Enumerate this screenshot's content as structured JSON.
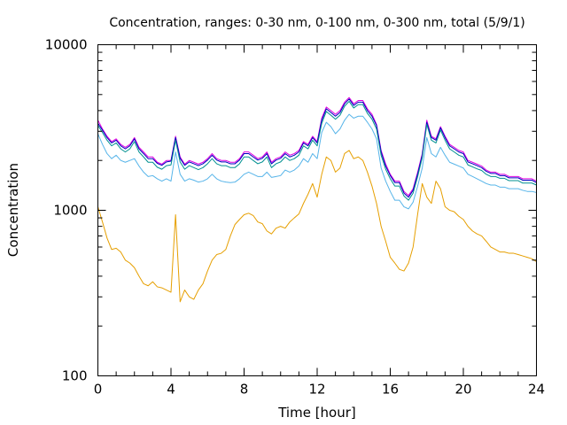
{
  "chart_data": {
    "type": "line",
    "title": "Concentration, ranges: 0-30 nm, 0-100 nm, 0-300 nm, total (5/9/1)",
    "xlabel": "Time [hour]",
    "ylabel": "Concentration",
    "xlim": [
      0,
      24
    ],
    "ylim": [
      100,
      10000
    ],
    "yscale": "log",
    "grid": false,
    "legend": "none",
    "x_ticks": [
      0,
      4,
      8,
      12,
      16,
      20,
      24
    ],
    "x_tick_labels": [
      "0",
      "4",
      "8",
      "12",
      "16",
      "20",
      "24"
    ],
    "x_minor_step": 1,
    "y_ticks": [
      100,
      1000,
      10000
    ],
    "y_tick_labels": [
      "100",
      "1000",
      "10000"
    ],
    "x": [
      0,
      0.25,
      0.5,
      0.75,
      1,
      1.25,
      1.5,
      1.75,
      2,
      2.25,
      2.5,
      2.75,
      3,
      3.25,
      3.5,
      3.75,
      4,
      4.25,
      4.5,
      4.75,
      5,
      5.25,
      5.5,
      5.75,
      6,
      6.25,
      6.5,
      6.75,
      7,
      7.25,
      7.5,
      7.75,
      8,
      8.25,
      8.5,
      8.75,
      9,
      9.25,
      9.5,
      9.75,
      10,
      10.25,
      10.5,
      10.75,
      11,
      11.25,
      11.5,
      11.75,
      12,
      12.25,
      12.5,
      12.75,
      13,
      13.25,
      13.5,
      13.75,
      14,
      14.25,
      14.5,
      14.75,
      15,
      15.25,
      15.5,
      15.75,
      16,
      16.25,
      16.5,
      16.75,
      17,
      17.25,
      17.5,
      17.75,
      18,
      18.25,
      18.5,
      18.75,
      19,
      19.25,
      19.5,
      19.75,
      20,
      20.25,
      20.5,
      20.75,
      21,
      21.25,
      21.5,
      21.75,
      22,
      22.25,
      22.5,
      22.75,
      23,
      23.25,
      23.5,
      23.75,
      24
    ],
    "series": [
      {
        "color": "#e000e0",
        "values": [
          3500,
          3100,
          2800,
          2600,
          2700,
          2500,
          2400,
          2500,
          2750,
          2400,
          2250,
          2100,
          2100,
          1950,
          1900,
          2000,
          2000,
          2800,
          2100,
          1900,
          2000,
          1950,
          1900,
          1950,
          2050,
          2200,
          2050,
          2000,
          2000,
          1950,
          1950,
          2050,
          2250,
          2250,
          2150,
          2050,
          2100,
          2250,
          1950,
          2050,
          2100,
          2250,
          2150,
          2200,
          2300,
          2600,
          2500,
          2800,
          2600,
          3600,
          4200,
          4000,
          3800,
          4000,
          4500,
          4800,
          4400,
          4600,
          4600,
          4100,
          3800,
          3300,
          2300,
          1900,
          1650,
          1500,
          1500,
          1300,
          1230,
          1350,
          1700,
          2200,
          3500,
          2800,
          2700,
          3200,
          2800,
          2500,
          2400,
          2300,
          2250,
          2000,
          1950,
          1900,
          1850,
          1750,
          1700,
          1700,
          1650,
          1650,
          1600,
          1600,
          1600,
          1550,
          1550,
          1550,
          1500
        ]
      },
      {
        "color": "#0000c0",
        "values": [
          3350,
          3050,
          2750,
          2550,
          2650,
          2450,
          2350,
          2450,
          2700,
          2350,
          2200,
          2050,
          2050,
          1920,
          1870,
          1960,
          1980,
          2750,
          2060,
          1870,
          1960,
          1910,
          1860,
          1910,
          2010,
          2150,
          2010,
          1960,
          1960,
          1910,
          1910,
          2010,
          2200,
          2200,
          2100,
          2010,
          2060,
          2200,
          1910,
          2010,
          2060,
          2200,
          2100,
          2150,
          2250,
          2550,
          2450,
          2750,
          2550,
          3500,
          4100,
          3900,
          3700,
          3900,
          4400,
          4700,
          4300,
          4500,
          4500,
          4000,
          3700,
          3250,
          2250,
          1850,
          1620,
          1470,
          1470,
          1270,
          1200,
          1320,
          1660,
          2150,
          3400,
          2750,
          2650,
          3150,
          2750,
          2450,
          2350,
          2250,
          2200,
          1960,
          1910,
          1860,
          1810,
          1720,
          1670,
          1670,
          1620,
          1620,
          1570,
          1570,
          1570,
          1520,
          1520,
          1520,
          1470
        ]
      },
      {
        "color": "#009090",
        "values": [
          3250,
          2950,
          2650,
          2450,
          2550,
          2350,
          2250,
          2350,
          2600,
          2250,
          2100,
          1950,
          1950,
          1820,
          1770,
          1860,
          1880,
          2650,
          1960,
          1770,
          1860,
          1810,
          1760,
          1810,
          1910,
          2050,
          1910,
          1860,
          1860,
          1810,
          1810,
          1910,
          2100,
          2100,
          2000,
          1910,
          1960,
          2100,
          1810,
          1910,
          1960,
          2100,
          2000,
          2050,
          2150,
          2450,
          2350,
          2650,
          2450,
          3350,
          3950,
          3750,
          3550,
          3750,
          4250,
          4550,
          4150,
          4350,
          4350,
          3850,
          3550,
          3100,
          2150,
          1770,
          1550,
          1400,
          1400,
          1220,
          1150,
          1270,
          1600,
          2080,
          3300,
          2650,
          2550,
          3050,
          2650,
          2350,
          2250,
          2150,
          2100,
          1880,
          1830,
          1780,
          1740,
          1650,
          1600,
          1600,
          1560,
          1560,
          1510,
          1510,
          1510,
          1460,
          1460,
          1460,
          1420
        ]
      },
      {
        "color": "#56b4e9",
        "values": [
          2900,
          2500,
          2200,
          2050,
          2150,
          2000,
          1950,
          2000,
          2050,
          1850,
          1700,
          1600,
          1620,
          1550,
          1500,
          1550,
          1500,
          2250,
          1650,
          1500,
          1550,
          1520,
          1480,
          1500,
          1550,
          1650,
          1550,
          1500,
          1480,
          1470,
          1480,
          1550,
          1650,
          1700,
          1650,
          1600,
          1600,
          1700,
          1580,
          1600,
          1620,
          1750,
          1700,
          1750,
          1850,
          2050,
          1950,
          2200,
          2050,
          2950,
          3400,
          3200,
          2900,
          3100,
          3500,
          3800,
          3600,
          3700,
          3700,
          3400,
          3100,
          2700,
          1800,
          1500,
          1300,
          1150,
          1150,
          1050,
          1020,
          1120,
          1400,
          1800,
          2750,
          2200,
          2100,
          2400,
          2150,
          1950,
          1900,
          1850,
          1800,
          1650,
          1600,
          1550,
          1500,
          1450,
          1420,
          1420,
          1380,
          1380,
          1350,
          1350,
          1350,
          1320,
          1300,
          1300,
          1280
        ]
      },
      {
        "color": "#e69f00",
        "values": [
          1050,
          850,
          680,
          580,
          590,
          560,
          500,
          480,
          450,
          400,
          360,
          350,
          370,
          345,
          340,
          330,
          320,
          940,
          280,
          330,
          300,
          290,
          330,
          360,
          430,
          500,
          540,
          550,
          580,
          700,
          820,
          880,
          940,
          960,
          930,
          850,
          830,
          750,
          720,
          780,
          800,
          780,
          850,
          900,
          950,
          1100,
          1250,
          1450,
          1200,
          1650,
          2100,
          2000,
          1700,
          1800,
          2200,
          2300,
          2050,
          2100,
          2000,
          1700,
          1400,
          1100,
          800,
          650,
          520,
          480,
          440,
          430,
          480,
          600,
          950,
          1450,
          1200,
          1100,
          1500,
          1350,
          1050,
          1000,
          980,
          920,
          880,
          800,
          750,
          720,
          700,
          650,
          600,
          580,
          560,
          560,
          550,
          550,
          540,
          530,
          520,
          510,
          490
        ]
      }
    ]
  }
}
